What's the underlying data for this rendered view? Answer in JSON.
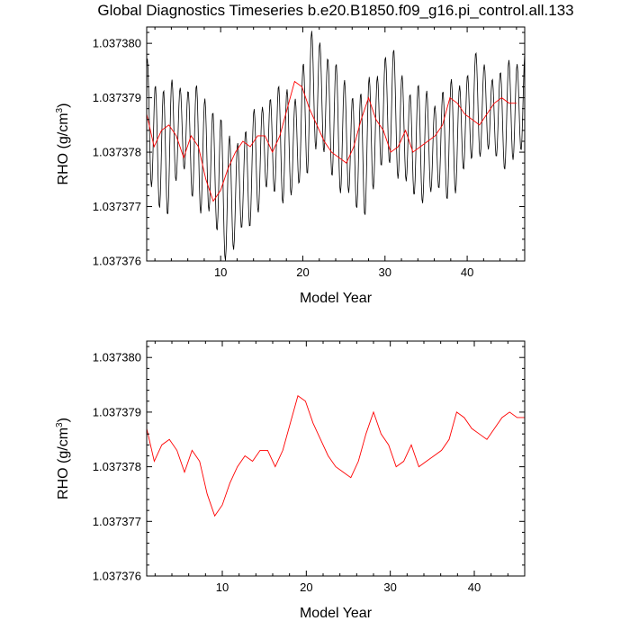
{
  "title": "Global Diagnostics Timeseries b.e20.B1850.f09_g16.pi_control.all.133",
  "colors": {
    "monthly_line": "#000000",
    "annual_line": "#ff0000",
    "axes": "#000000"
  },
  "chart_data": [
    {
      "type": "line",
      "xlabel": "Model Year",
      "ylabel": "RHO (g/cm",
      "ylabel_superscript": "3",
      "ylabel_suffix": ")",
      "xlim": [
        1,
        47
      ],
      "ylim": [
        1.037376,
        1.0373803
      ],
      "x_ticks": [
        10,
        20,
        30,
        40
      ],
      "x_tick_labels": [
        "10",
        "20",
        "30",
        "40"
      ],
      "y_ticks": [
        1.037376,
        1.037377,
        1.037378,
        1.037379,
        1.03738
      ],
      "y_tick_labels": [
        "1.037376",
        "1.037377",
        "1.037378",
        "1.037379",
        "1.037380"
      ],
      "grid": false,
      "series": [
        {
          "style": "monthly",
          "color": "#000000",
          "note_type": "sinusoid_envelope",
          "start_year": 1,
          "end_year": 47,
          "samples_per_year": 12,
          "envelope": [
            [
              1.0,
              1.0373786,
              1.1e-06
            ],
            [
              3.0,
              1.0373779,
              1.2e-06
            ],
            [
              5.0,
              1.0373785,
              8e-07
            ],
            [
              7.0,
              1.0373781,
              1e-06
            ],
            [
              9.0,
              1.0373778,
              1.1e-06
            ],
            [
              11.0,
              1.0373771,
              1.1e-06
            ],
            [
              13.0,
              1.0373775,
              9e-07
            ],
            [
              16.0,
              1.0373782,
              9e-07
            ],
            [
              19.0,
              1.0373781,
              1e-06
            ],
            [
              21.5,
              1.0373792,
              1.1e-06
            ],
            [
              24.0,
              1.0373785,
              1e-06
            ],
            [
              27.0,
              1.0373779,
              1.1e-06
            ],
            [
              30.5,
              1.0373789,
              1e-06
            ],
            [
              33.0,
              1.0373782,
              1e-06
            ],
            [
              36.0,
              1.0373781,
              9e-07
            ],
            [
              39.0,
              1.0373783,
              1e-06
            ],
            [
              41.0,
              1.0373789,
              8e-07
            ],
            [
              44.0,
              1.0373786,
              8e-07
            ],
            [
              47.0,
              1.0373789,
              1e-06
            ]
          ]
        },
        {
          "style": "annual",
          "color": "#ff0000",
          "x": [
            1.0,
            1.9,
            2.8,
            3.7,
            4.6,
            5.5,
            6.4,
            7.3,
            8.2,
            9.1,
            10.0,
            10.9,
            11.8,
            12.7,
            13.6,
            14.5,
            15.4,
            16.3,
            17.2,
            18.1,
            19.0,
            19.9,
            20.8,
            21.7,
            22.6,
            23.5,
            24.4,
            25.3,
            26.2,
            27.1,
            28.0,
            28.9,
            29.8,
            30.7,
            31.6,
            32.5,
            33.4,
            34.3,
            35.2,
            36.1,
            37.0,
            37.9,
            38.8,
            39.7,
            40.6,
            41.5,
            42.4,
            43.3,
            44.2,
            45.1,
            46.0
          ],
          "y": [
            1.0373787,
            1.0373781,
            1.0373784,
            1.0373785,
            1.0373783,
            1.0373779,
            1.0373783,
            1.0373781,
            1.0373775,
            1.0373771,
            1.0373773,
            1.0373777,
            1.037378,
            1.0373782,
            1.0373781,
            1.0373783,
            1.0373783,
            1.037378,
            1.0373783,
            1.0373788,
            1.0373793,
            1.0373792,
            1.0373788,
            1.0373785,
            1.0373782,
            1.037378,
            1.0373779,
            1.0373778,
            1.0373781,
            1.0373786,
            1.037379,
            1.0373786,
            1.0373784,
            1.037378,
            1.0373781,
            1.0373784,
            1.037378,
            1.0373781,
            1.0373782,
            1.0373783,
            1.0373785,
            1.037379,
            1.0373789,
            1.0373787,
            1.0373786,
            1.0373785,
            1.0373787,
            1.0373789,
            1.037379,
            1.0373789,
            1.0373789
          ]
        }
      ]
    },
    {
      "type": "line",
      "xlabel": "Model Year",
      "ylabel": "RHO (g/cm",
      "ylabel_superscript": "3",
      "ylabel_suffix": ")",
      "xlim": [
        1,
        46
      ],
      "ylim": [
        1.037376,
        1.0373803
      ],
      "x_ticks": [
        10,
        20,
        30,
        40
      ],
      "x_tick_labels": [
        "10",
        "20",
        "30",
        "40"
      ],
      "y_ticks": [
        1.037376,
        1.037377,
        1.037378,
        1.037379,
        1.03738
      ],
      "y_tick_labels": [
        "1.037376",
        "1.037377",
        "1.037378",
        "1.037379",
        "1.037380"
      ],
      "grid": false,
      "series": [
        {
          "style": "annual",
          "color": "#ff0000",
          "x": [
            1.0,
            1.9,
            2.8,
            3.7,
            4.6,
            5.5,
            6.4,
            7.3,
            8.2,
            9.1,
            10.0,
            10.9,
            11.8,
            12.7,
            13.6,
            14.5,
            15.4,
            16.3,
            17.2,
            18.1,
            19.0,
            19.9,
            20.8,
            21.7,
            22.6,
            23.5,
            24.4,
            25.3,
            26.2,
            27.1,
            28.0,
            28.9,
            29.8,
            30.7,
            31.6,
            32.5,
            33.4,
            34.3,
            35.2,
            36.1,
            37.0,
            37.9,
            38.8,
            39.7,
            40.6,
            41.5,
            42.4,
            43.3,
            44.2,
            45.1,
            46.0
          ],
          "y": [
            1.0373787,
            1.0373781,
            1.0373784,
            1.0373785,
            1.0373783,
            1.0373779,
            1.0373783,
            1.0373781,
            1.0373775,
            1.0373771,
            1.0373773,
            1.0373777,
            1.037378,
            1.0373782,
            1.0373781,
            1.0373783,
            1.0373783,
            1.037378,
            1.0373783,
            1.0373788,
            1.0373793,
            1.0373792,
            1.0373788,
            1.0373785,
            1.0373782,
            1.037378,
            1.0373779,
            1.0373778,
            1.0373781,
            1.0373786,
            1.037379,
            1.0373786,
            1.0373784,
            1.037378,
            1.0373781,
            1.0373784,
            1.037378,
            1.0373781,
            1.0373782,
            1.0373783,
            1.0373785,
            1.037379,
            1.0373789,
            1.0373787,
            1.0373786,
            1.0373785,
            1.0373787,
            1.0373789,
            1.037379,
            1.0373789,
            1.0373789
          ]
        }
      ]
    }
  ]
}
